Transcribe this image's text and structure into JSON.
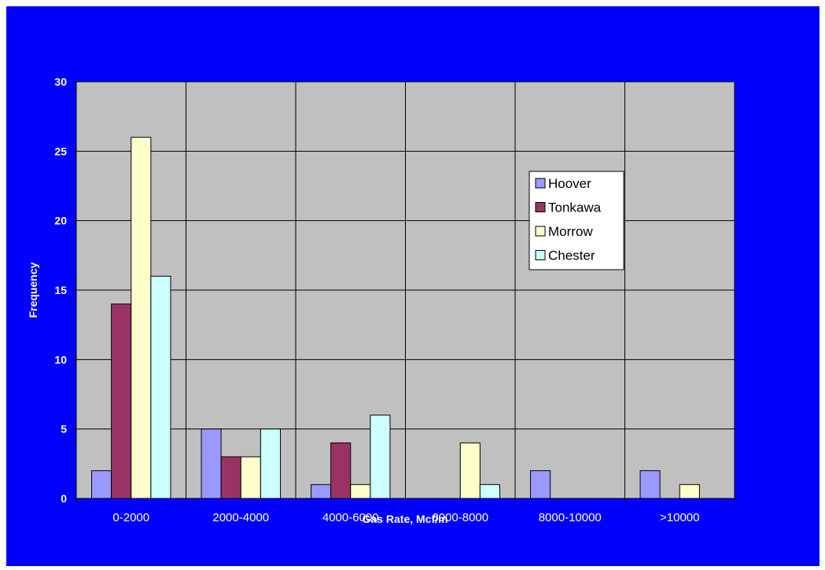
{
  "colors": {
    "background": "#0000ff",
    "plot_area": "#c0c0c0",
    "gridline": "#000000",
    "text": "#ffffff"
  },
  "chart_data": {
    "type": "bar",
    "title": "",
    "xlabel": "Gas Rate, Mcf/m",
    "ylabel": "Frequency",
    "ylim": [
      0,
      30
    ],
    "yticks": [
      0,
      5,
      10,
      15,
      20,
      25,
      30
    ],
    "categories": [
      "0-2000",
      "2000-4000",
      "4000-6000",
      "6000-8000",
      "8000-10000",
      ">10000"
    ],
    "grid": true,
    "legend_position": "right",
    "series": [
      {
        "name": "Hoover",
        "color": "#9999ff",
        "values": [
          2,
          5,
          1,
          0,
          2,
          2
        ]
      },
      {
        "name": "Tonkawa",
        "color": "#993366",
        "values": [
          14,
          3,
          4,
          0,
          0,
          0
        ]
      },
      {
        "name": "Morrow",
        "color": "#ffffcc",
        "values": [
          26,
          3,
          1,
          4,
          0,
          1
        ]
      },
      {
        "name": "Chester",
        "color": "#ccffff",
        "values": [
          16,
          5,
          6,
          1,
          0,
          0
        ]
      }
    ]
  }
}
